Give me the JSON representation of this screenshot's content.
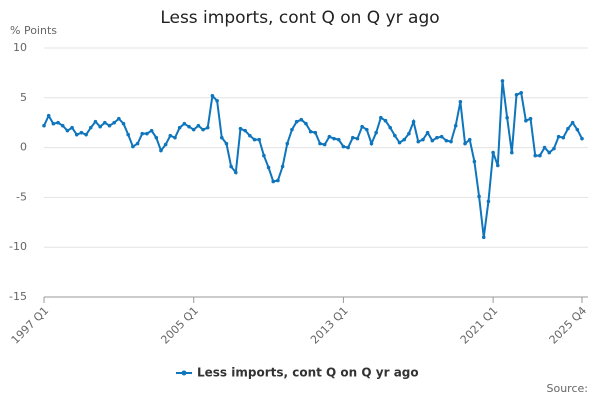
{
  "chart_data": {
    "type": "line",
    "title": "Less imports, cont Q on Q yr ago",
    "y_label": "% Points",
    "source": "Source:",
    "categories": [
      "1997 Q1",
      null,
      null,
      null,
      null,
      null,
      null,
      null,
      null,
      null,
      null,
      null,
      null,
      null,
      null,
      null,
      null,
      null,
      null,
      null,
      null,
      null,
      null,
      null,
      null,
      null,
      null,
      null,
      null,
      null,
      null,
      null,
      "2005 Q1",
      null,
      null,
      null,
      null,
      null,
      null,
      null,
      null,
      null,
      null,
      null,
      null,
      null,
      null,
      null,
      null,
      null,
      null,
      null,
      null,
      null,
      null,
      null,
      null,
      null,
      null,
      null,
      null,
      null,
      null,
      null,
      "2013 Q1",
      null,
      null,
      null,
      null,
      null,
      null,
      null,
      null,
      null,
      null,
      null,
      null,
      null,
      null,
      null,
      null,
      null,
      null,
      null,
      null,
      null,
      null,
      null,
      null,
      null,
      null,
      null,
      null,
      null,
      null,
      null,
      "2021 Q1",
      null,
      null,
      null,
      null,
      null,
      null,
      null,
      null,
      null,
      null,
      null,
      null,
      null,
      null,
      null,
      null,
      null,
      null,
      "2025 Q4"
    ],
    "series": [
      {
        "name": "Less imports, cont Q on Q yr ago",
        "color": "#0f75bc",
        "values": [
          2.2,
          3.2,
          2.4,
          2.5,
          2.2,
          1.7,
          2.0,
          1.3,
          1.5,
          1.3,
          2.0,
          2.6,
          2.1,
          2.5,
          2.2,
          2.5,
          2.9,
          2.4,
          1.3,
          0.1,
          0.4,
          1.4,
          1.4,
          1.7,
          1.0,
          -0.3,
          0.3,
          1.2,
          1.0,
          2.0,
          2.4,
          2.1,
          1.8,
          2.2,
          1.8,
          2.0,
          5.2,
          4.7,
          1.0,
          0.4,
          -1.9,
          -2.5,
          1.9,
          1.7,
          1.2,
          0.8,
          0.8,
          -0.8,
          -2.0,
          -3.4,
          -3.3,
          -1.9,
          0.4,
          1.8,
          2.6,
          2.8,
          2.4,
          1.6,
          1.5,
          0.4,
          0.3,
          1.1,
          0.9,
          0.8,
          0.1,
          0.0,
          1.0,
          0.9,
          2.1,
          1.8,
          0.4,
          1.5,
          3.0,
          2.7,
          2.0,
          1.2,
          0.5,
          0.8,
          1.4,
          2.6,
          0.6,
          0.8,
          1.5,
          0.7,
          1.0,
          1.1,
          0.7,
          0.6,
          2.2,
          4.6,
          0.4,
          0.8,
          -1.4,
          -4.9,
          -9.0,
          -5.4,
          -0.5,
          -1.8,
          6.7,
          3.0,
          -0.5,
          5.3,
          5.5,
          2.7,
          2.9,
          -0.8,
          -0.8,
          0.0,
          -0.5,
          -0.1,
          1.1,
          1.0,
          1.9,
          2.5,
          1.8,
          0.9
        ]
      }
    ],
    "ylim": [
      -15,
      10
    ],
    "yticks": [
      -15,
      -10,
      -5,
      0,
      5,
      10
    ],
    "grid": true
  }
}
